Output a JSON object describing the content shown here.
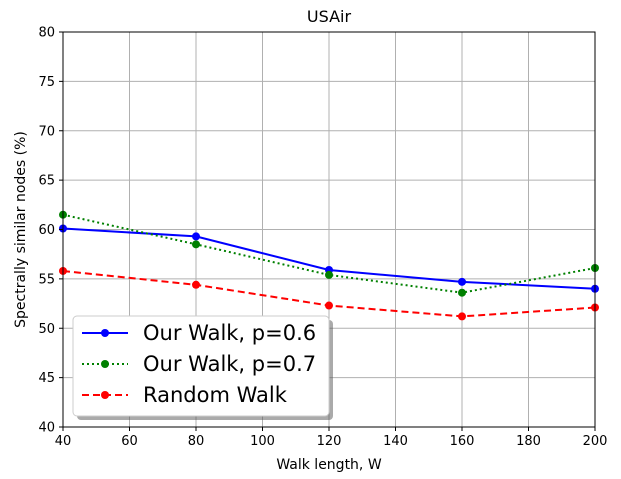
{
  "chart_data": {
    "type": "line",
    "title": "USAir",
    "xlabel": "Walk length, W",
    "ylabel": "Spectrally similar nodes (%)",
    "xlim": [
      40,
      200
    ],
    "ylim": [
      40,
      80
    ],
    "xticks": [
      40,
      60,
      80,
      100,
      120,
      140,
      160,
      180,
      200
    ],
    "yticks": [
      40,
      45,
      50,
      55,
      60,
      65,
      70,
      75,
      80
    ],
    "grid": true,
    "legend_position": "lower-left",
    "x": [
      40,
      80,
      120,
      160,
      200
    ],
    "series": [
      {
        "name": "Our Walk, p=0.6",
        "values": [
          60.1,
          59.3,
          55.9,
          54.7,
          54.0
        ],
        "color": "#0000ff",
        "linestyle": "solid"
      },
      {
        "name": "Our Walk, p=0.7",
        "values": [
          61.5,
          58.5,
          55.4,
          53.6,
          56.1
        ],
        "color": "#008000",
        "linestyle": "dotted"
      },
      {
        "name": "Random Walk",
        "values": [
          55.8,
          54.4,
          52.3,
          51.2,
          52.1
        ],
        "color": "#ff0000",
        "linestyle": "dashed"
      }
    ]
  }
}
